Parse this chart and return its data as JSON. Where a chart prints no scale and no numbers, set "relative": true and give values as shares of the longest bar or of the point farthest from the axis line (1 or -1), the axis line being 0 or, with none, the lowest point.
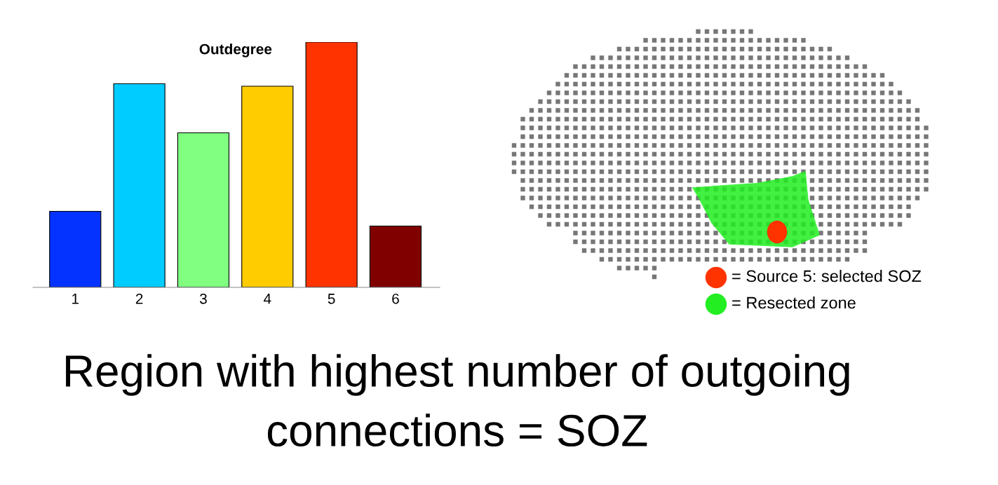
{
  "chart_data": [
    {
      "type": "bar",
      "title": "Outdegree",
      "categories": [
        "1",
        "2",
        "3",
        "4",
        "5",
        "6"
      ],
      "relative": true,
      "values": [
        0.31,
        0.83,
        0.63,
        0.82,
        1,
        0.25
      ],
      "colors": [
        "#0433ff",
        "#00ccff",
        "#80ff80",
        "#ffcc00",
        "#ff3300",
        "#800000"
      ],
      "annotations": [
        "Region with highest number of outgoing connections = SOZ"
      ]
    },
    {
      "type": "other",
      "annotations": [
        "= Source 5: selected SOZ",
        "= Resected zone"
      ]
    }
  ]
}
